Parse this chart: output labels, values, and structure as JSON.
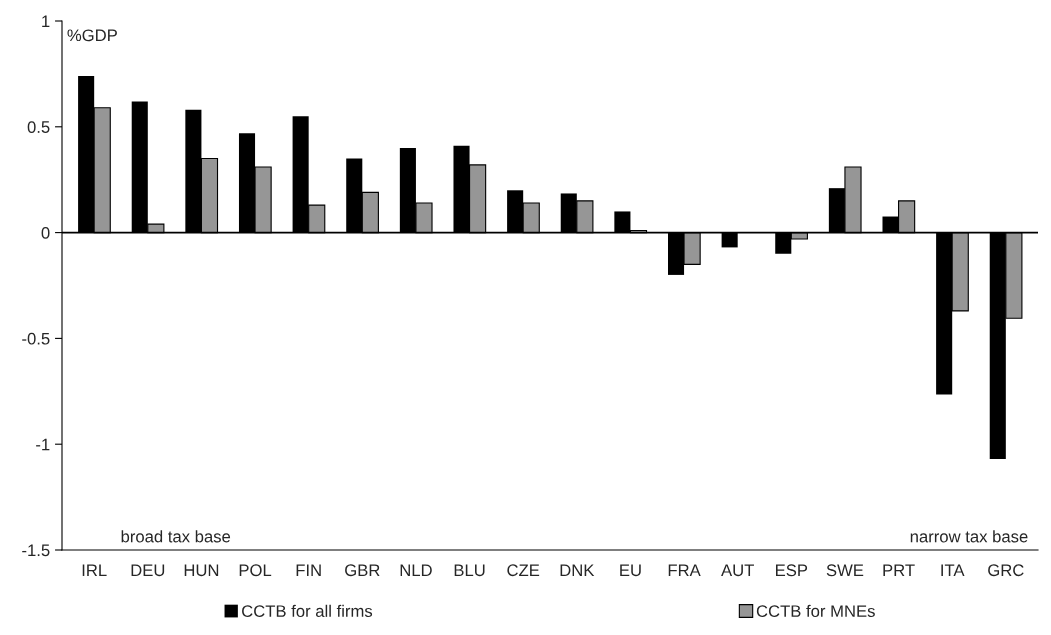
{
  "chart_data": {
    "type": "bar",
    "ylabel": "%GDP",
    "categories": [
      "IRL",
      "DEU",
      "HUN",
      "POL",
      "FIN",
      "GBR",
      "NLD",
      "BLU",
      "CZE",
      "DNK",
      "EU",
      "FRA",
      "AUT",
      "ESP",
      "SWE",
      "PRT",
      "ITA",
      "GRC"
    ],
    "series": [
      {
        "name": "CCTB for all firms",
        "color": "#000000",
        "values": [
          0.74,
          0.62,
          0.58,
          0.47,
          0.55,
          0.35,
          0.4,
          0.41,
          0.2,
          0.185,
          0.1,
          -0.2,
          -0.07,
          -0.1,
          0.21,
          0.076,
          -0.765,
          -1.07
        ]
      },
      {
        "name": "CCTB for MNEs",
        "color": "#969696",
        "values": [
          0.59,
          0.04,
          0.35,
          0.31,
          0.13,
          0.19,
          0.14,
          0.32,
          0.14,
          0.15,
          0.01,
          -0.15,
          null,
          -0.03,
          0.31,
          0.15,
          -0.37,
          -0.405
        ]
      }
    ],
    "ylim": [
      -1.5,
      1
    ],
    "yticks": [
      -1.5,
      -1,
      -0.5,
      0,
      0.5,
      1
    ],
    "ref_lines": [
      {
        "axis": "y",
        "value": 0
      }
    ],
    "annotations": [
      "broad tax base",
      "narrow tax base"
    ],
    "grid": false,
    "legend": "bottom"
  }
}
